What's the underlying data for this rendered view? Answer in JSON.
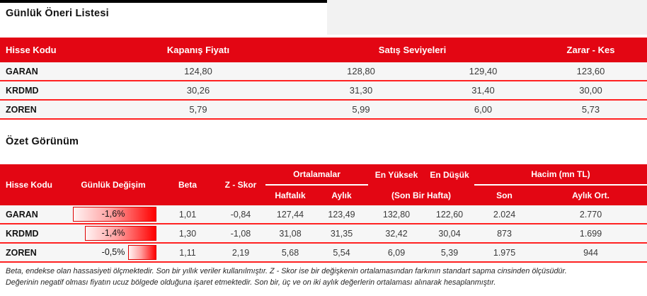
{
  "page": {
    "accent_red": "#e30613",
    "separator_red": "#ff2222",
    "topbar_color": "#000000"
  },
  "section1": {
    "title": "Günlük Öneri Listesi",
    "table": {
      "headers": {
        "code": "Hisse Kodu",
        "close": "Kapanış Fiyatı",
        "sell_levels": "Satış Seviyeleri",
        "stop_loss": "Zarar - Kes"
      },
      "rows": [
        {
          "code": "GARAN",
          "close": "124,80",
          "sell1": "128,80",
          "sell2": "129,40",
          "stop": "123,60"
        },
        {
          "code": "KRDMD",
          "close": "30,26",
          "sell1": "31,30",
          "sell2": "31,40",
          "stop": "30,00"
        },
        {
          "code": "ZOREN",
          "close": "5,79",
          "sell1": "5,99",
          "sell2": "6,00",
          "stop": "5,73"
        }
      ]
    }
  },
  "section2": {
    "title": "Özet Görünüm",
    "table": {
      "headers": {
        "code": "Hisse Kodu",
        "daily_change": "Günlük Değişim",
        "beta": "Beta",
        "zscore": "Z - Skor",
        "averages": "Ortalamalar",
        "weekly": "Haftalık",
        "monthly": "Aylık",
        "highest": "En Yüksek",
        "lowest": "En Düşük",
        "last_week": "(Son Bir Hafta)",
        "volume": "Hacim (mn TL)",
        "last": "Son",
        "monthly_avg": "Aylık Ort."
      },
      "rows": [
        {
          "code": "GARAN",
          "daily_change": "-1,6%",
          "bar_pct": 97,
          "beta": "1,01",
          "zscore": "-0,84",
          "weekly": "127,44",
          "monthly": "123,49",
          "high": "132,80",
          "low": "122,60",
          "last": "2.024",
          "monthly_avg": "2.770"
        },
        {
          "code": "KRDMD",
          "daily_change": "-1,4%",
          "bar_pct": 83,
          "beta": "1,30",
          "zscore": "-1,08",
          "weekly": "31,08",
          "monthly": "31,35",
          "high": "32,42",
          "low": "30,04",
          "last": "873",
          "monthly_avg": "1.699"
        },
        {
          "code": "ZOREN",
          "daily_change": "-0,5%",
          "bar_pct": 33,
          "beta": "1,11",
          "zscore": "2,19",
          "weekly": "5,68",
          "monthly": "5,54",
          "high": "6,09",
          "low": "5,39",
          "last": "1.975",
          "monthly_avg": "944"
        }
      ]
    }
  },
  "footnote": {
    "line1": "Beta, endekse olan hassasiyeti ölçmektedir. Son bir yıllık veriler kullanılmıştır. Z - Skor ise bir değişkenin ortalamasından farkının standart sapma cinsinden ölçüsüdür.",
    "line2": "Değerinin negatif olması fiyatın ucuz bölgede olduğuna işaret etmektedir. Son bir, üç ve on iki aylık değerlerin ortalaması alınarak hesaplanmıştır."
  }
}
